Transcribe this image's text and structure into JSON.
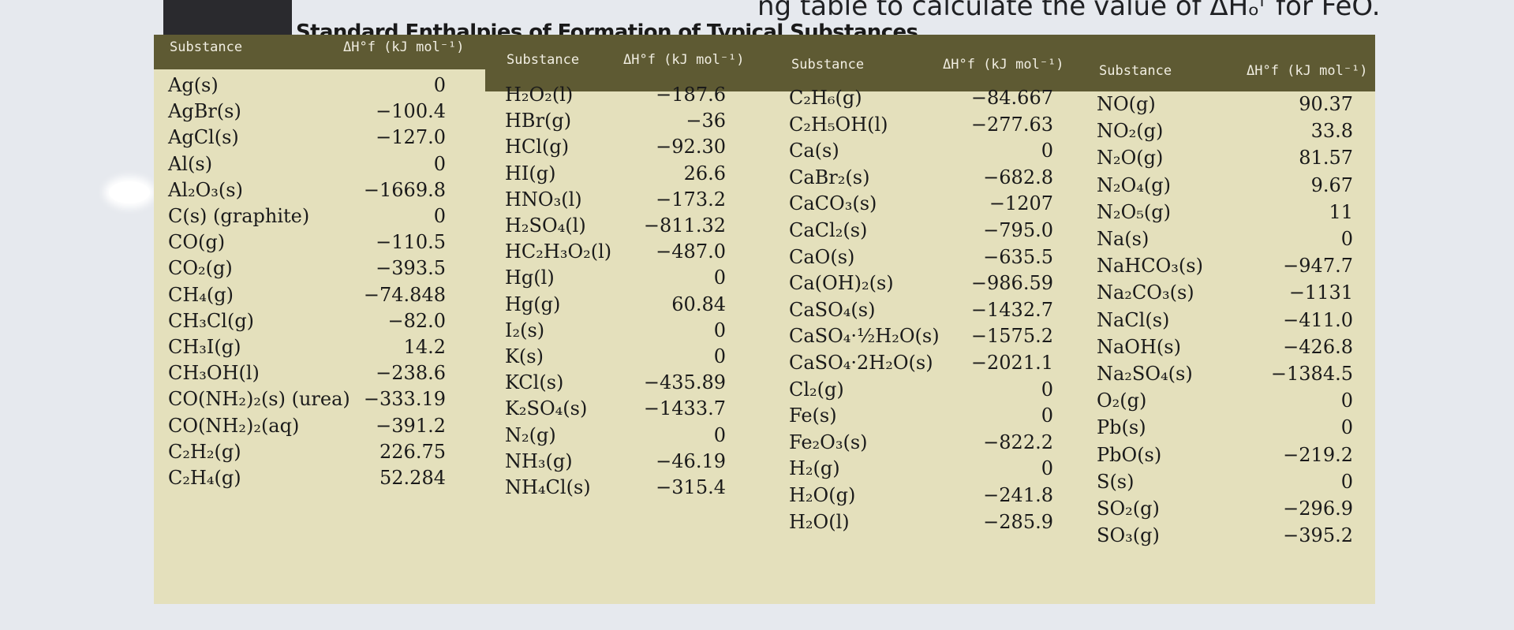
{
  "overlay": {
    "prefix": "ng table to calculate the",
    "text": "value of ΔHₒᶠ for FeO."
  },
  "title": "Standard Enthalpies of Formation of Typical Substances",
  "headers": {
    "substance": "Substance",
    "dh": "ΔH°f (kJ mol⁻¹)"
  },
  "columns": [
    {
      "rows": [
        {
          "s": "Ag(s)",
          "v": "0"
        },
        {
          "s": "AgBr(s)",
          "v": "−100.4"
        },
        {
          "s": "AgCl(s)",
          "v": "−127.0"
        },
        {
          "s": "Al(s)",
          "v": "0"
        },
        {
          "s": "Al₂O₃(s)",
          "v": "−1669.8"
        },
        {
          "s": "C(s) (graphite)",
          "v": "0"
        },
        {
          "s": "CO(g)",
          "v": "−110.5"
        },
        {
          "s": "CO₂(g)",
          "v": "−393.5"
        },
        {
          "s": "CH₄(g)",
          "v": "−74.848"
        },
        {
          "s": "CH₃Cl(g)",
          "v": "−82.0"
        },
        {
          "s": "CH₃I(g)",
          "v": "14.2"
        },
        {
          "s": "CH₃OH(l)",
          "v": "−238.6"
        },
        {
          "s": "CO(NH₂)₂(s) (urea)",
          "v": "−333.19"
        },
        {
          "s": "CO(NH₂)₂(aq)",
          "v": "−391.2"
        },
        {
          "s": "C₂H₂(g)",
          "v": "226.75"
        },
        {
          "s": "C₂H₄(g)",
          "v": "52.284"
        }
      ]
    },
    {
      "rows": [
        {
          "s": "H₂O₂(l)",
          "v": "−187.6"
        },
        {
          "s": "HBr(g)",
          "v": "−36"
        },
        {
          "s": "HCl(g)",
          "v": "−92.30"
        },
        {
          "s": "HI(g)",
          "v": "26.6"
        },
        {
          "s": "HNO₃(l)",
          "v": "−173.2"
        },
        {
          "s": "H₂SO₄(l)",
          "v": "−811.32"
        },
        {
          "s": "HC₂H₃O₂(l)",
          "v": "−487.0"
        },
        {
          "s": "Hg(l)",
          "v": "0"
        },
        {
          "s": "Hg(g)",
          "v": "60.84"
        },
        {
          "s": "I₂(s)",
          "v": "0"
        },
        {
          "s": "K(s)",
          "v": "0"
        },
        {
          "s": "KCl(s)",
          "v": "−435.89"
        },
        {
          "s": "K₂SO₄(s)",
          "v": "−1433.7"
        },
        {
          "s": "N₂(g)",
          "v": "0"
        },
        {
          "s": "NH₃(g)",
          "v": "−46.19"
        },
        {
          "s": "NH₄Cl(s)",
          "v": "−315.4"
        }
      ]
    },
    {
      "rows": [
        {
          "s": "C₂H₆(g)",
          "v": "−84.667"
        },
        {
          "s": "C₂H₅OH(l)",
          "v": "−277.63"
        },
        {
          "s": "Ca(s)",
          "v": "0"
        },
        {
          "s": "CaBr₂(s)",
          "v": "−682.8"
        },
        {
          "s": "CaCO₃(s)",
          "v": "−1207"
        },
        {
          "s": "CaCl₂(s)",
          "v": "−795.0"
        },
        {
          "s": "CaO(s)",
          "v": "−635.5"
        },
        {
          "s": "Ca(OH)₂(s)",
          "v": "−986.59"
        },
        {
          "s": "CaSO₄(s)",
          "v": "−1432.7"
        },
        {
          "s": "CaSO₄·½H₂O(s)",
          "v": "−1575.2"
        },
        {
          "s": "CaSO₄·2H₂O(s)",
          "v": "−2021.1"
        },
        {
          "s": "Cl₂(g)",
          "v": "0"
        },
        {
          "s": "Fe(s)",
          "v": "0"
        },
        {
          "s": "Fe₂O₃(s)",
          "v": "−822.2"
        },
        {
          "s": "H₂(g)",
          "v": "0"
        },
        {
          "s": "H₂O(g)",
          "v": "−241.8"
        },
        {
          "s": "H₂O(l)",
          "v": "−285.9"
        }
      ]
    },
    {
      "rows": [
        {
          "s": "NO(g)",
          "v": "90.37"
        },
        {
          "s": "NO₂(g)",
          "v": "33.8"
        },
        {
          "s": "N₂O(g)",
          "v": "81.57"
        },
        {
          "s": "N₂O₄(g)",
          "v": "9.67"
        },
        {
          "s": "N₂O₅(g)",
          "v": "11"
        },
        {
          "s": "Na(s)",
          "v": "0"
        },
        {
          "s": "NaHCO₃(s)",
          "v": "−947.7"
        },
        {
          "s": "Na₂CO₃(s)",
          "v": "−1131"
        },
        {
          "s": "NaCl(s)",
          "v": "−411.0"
        },
        {
          "s": "NaOH(s)",
          "v": "−426.8"
        },
        {
          "s": "Na₂SO₄(s)",
          "v": "−1384.5"
        },
        {
          "s": "O₂(g)",
          "v": "0"
        },
        {
          "s": "Pb(s)",
          "v": "0"
        },
        {
          "s": "PbO(s)",
          "v": "−219.2"
        },
        {
          "s": "S(s)",
          "v": "0"
        },
        {
          "s": "SO₂(g)",
          "v": "−296.9"
        },
        {
          "s": "SO₃(g)",
          "v": "−395.2"
        }
      ]
    }
  ]
}
